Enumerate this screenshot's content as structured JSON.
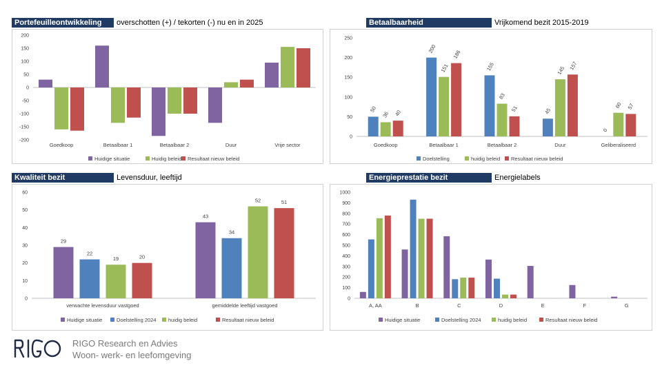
{
  "colors": {
    "purple": "#8064a2",
    "blue": "#4f81bd",
    "green": "#9bbb59",
    "red": "#c0504d",
    "badge": "#1f3a63"
  },
  "panels": {
    "tl": {
      "badge": "Portefeuilleontwikkeling",
      "subtitle": "overschotten (+) / tekorten (-) nu en in 2025"
    },
    "tr": {
      "badge": "Betaalbaarheid",
      "subtitle": "Vrijkomend bezit 2015-2019"
    },
    "bl": {
      "badge": "Kwaliteit bezit",
      "subtitle": "Levensduur, leeftijd"
    },
    "br": {
      "badge": "Energieprestatie bezit",
      "subtitle": "Energielabels"
    }
  },
  "footer": {
    "logo_text": "RIGO",
    "company_name": "RIGO Research en Advies",
    "tagline": "Woon- werk- en leefomgeving"
  },
  "chart_data": [
    {
      "id": "portefeuille",
      "type": "bar",
      "categories": [
        "Goedkoop",
        "Betaalbaar 1",
        "Betaalbaar 2",
        "Duur",
        "Vrije sector"
      ],
      "series": [
        {
          "name": "Huidige situatie",
          "color": "purple",
          "values": [
            30,
            160,
            -185,
            -135,
            95
          ]
        },
        {
          "name": "Huidig beleid",
          "color": "green",
          "values": [
            -160,
            -135,
            -100,
            20,
            155
          ]
        },
        {
          "name": "Resultaat nieuw beleid",
          "color": "red",
          "values": [
            -165,
            -115,
            -100,
            30,
            150
          ]
        }
      ],
      "ylim": [
        -200,
        200
      ],
      "yticks": [
        -200,
        -150,
        -100,
        -50,
        0,
        50,
        100,
        150,
        200
      ],
      "negative_tick_color": "red",
      "data_labels": false
    },
    {
      "id": "betaalbaarheid",
      "type": "bar",
      "categories": [
        "Goedkoop",
        "Betaalbaar 1",
        "Betaalbaar 2",
        "Duur",
        "Geliberaliseerd"
      ],
      "series": [
        {
          "name": "Doelstelling",
          "color": "blue",
          "values": [
            50,
            200,
            155,
            45,
            0
          ]
        },
        {
          "name": "huidig beleid",
          "color": "green",
          "values": [
            36,
            151,
            83,
            145,
            60
          ]
        },
        {
          "name": "Resultaat nieuw beleid",
          "color": "red",
          "values": [
            40,
            186,
            51,
            157,
            57
          ]
        }
      ],
      "ylim": [
        0,
        250
      ],
      "yticks": [
        0,
        50,
        100,
        150,
        200,
        250
      ],
      "data_labels": true,
      "rotated_labels": true
    },
    {
      "id": "kwaliteit",
      "type": "bar",
      "categories": [
        "verwachte levensduur vastgoed",
        "gemiddelde leeftijd vastgoed"
      ],
      "series": [
        {
          "name": "Huidige situatie",
          "color": "purple",
          "values": [
            29,
            43
          ]
        },
        {
          "name": "Doelstelling 2024",
          "color": "blue",
          "values": [
            22,
            34
          ]
        },
        {
          "name": "huidig beleid",
          "color": "green",
          "values": [
            19,
            52
          ]
        },
        {
          "name": "Resultaat nieuw beleid",
          "color": "red",
          "values": [
            20,
            51
          ]
        }
      ],
      "ylim": [
        0,
        60
      ],
      "yticks": [
        0,
        10,
        20,
        30,
        40,
        50,
        60
      ],
      "data_labels": true
    },
    {
      "id": "energie",
      "type": "bar",
      "categories": [
        "A, AA",
        "B",
        "C",
        "D",
        "E",
        "F",
        "G"
      ],
      "series": [
        {
          "name": "Huidige situatie",
          "color": "purple",
          "values": [
            60,
            460,
            585,
            365,
            305,
            125,
            15
          ]
        },
        {
          "name": "Doelstelling 2024",
          "color": "blue",
          "values": [
            555,
            930,
            180,
            185,
            0,
            0,
            0
          ]
        },
        {
          "name": "huidig beleid",
          "color": "green",
          "values": [
            755,
            750,
            195,
            35,
            0,
            0,
            0
          ]
        },
        {
          "name": "Resultaat nieuw beleid",
          "color": "red",
          "values": [
            780,
            750,
            195,
            35,
            0,
            0,
            0
          ]
        }
      ],
      "ylim": [
        0,
        1000
      ],
      "yticks": [
        0,
        100,
        200,
        300,
        400,
        500,
        600,
        700,
        800,
        900,
        1000
      ],
      "data_labels": false
    }
  ]
}
